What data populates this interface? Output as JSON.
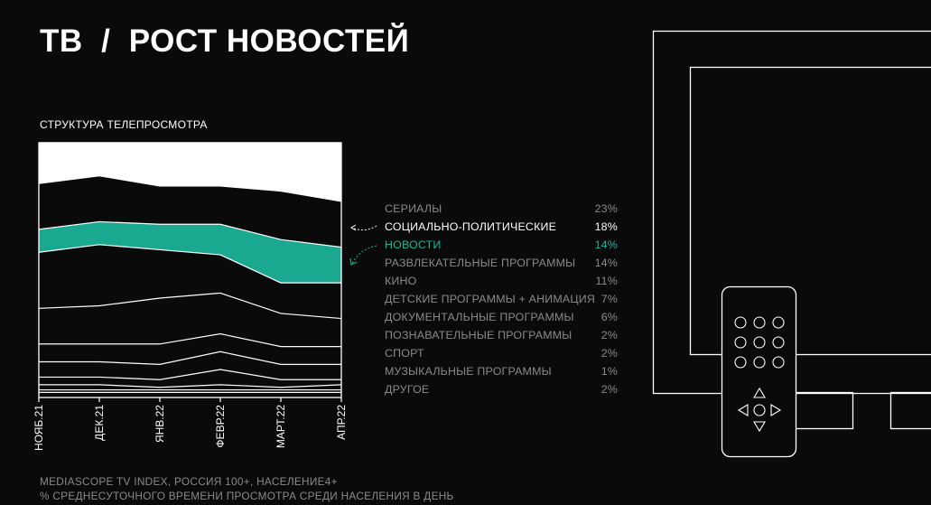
{
  "header": {
    "title": "ТВ  /  РОСТ НОВОСТЕЙ",
    "subtitle": "СТРУКТУРА ТЕЛЕПРОСМОТРА"
  },
  "colors": {
    "background": "#0a0a0a",
    "serials_band": "#ffffff",
    "news_band": "#1aa891",
    "accent_text": "#1fb59b",
    "muted_text": "#8a8a8a"
  },
  "chart_data": {
    "type": "area",
    "title": "СТРУКТУРА ТЕЛЕПРОСМОТРА",
    "stacked": true,
    "categories": [
      "НОЯБ.21",
      "ДЕК.21",
      "ЯНВ.22",
      "ФЕВР.22",
      "МАРТ.22",
      "АПР.22"
    ],
    "ylim": [
      0,
      100
    ],
    "series": [
      {
        "name": "ДРУГОЕ",
        "values": [
          2,
          2,
          2,
          2,
          2,
          2
        ]
      },
      {
        "name": "МУЗЫКАЛЬНЫЕ ПРОГРАММЫ",
        "values": [
          1,
          1,
          1,
          1,
          1,
          1
        ]
      },
      {
        "name": "СПОРТ",
        "values": [
          2,
          2,
          1,
          2,
          1,
          2
        ]
      },
      {
        "name": "ПОЗНАВАТЕЛЬНЫЕ ПРОГРАММЫ",
        "values": [
          3,
          3,
          3,
          6,
          3,
          2
        ]
      },
      {
        "name": "ДОКУМЕНТАЛЬНЫЕ ПРОГРАММЫ",
        "values": [
          6,
          6,
          6,
          7,
          6,
          6
        ]
      },
      {
        "name": "ДЕТСКИЕ ПРОГРАММЫ + АНИМАЦИЯ",
        "values": [
          7,
          7,
          8,
          7,
          7,
          7
        ]
      },
      {
        "name": "КИНО",
        "values": [
          14,
          15,
          18,
          16,
          13,
          11
        ]
      },
      {
        "name": "РАЗВЛЕКАТЕЛЬНЫЕ ПРОГРАММЫ",
        "values": [
          22,
          24,
          19,
          15,
          12,
          14
        ]
      },
      {
        "name": "НОВОСТИ",
        "values": [
          9,
          9,
          10,
          12,
          17,
          14
        ]
      },
      {
        "name": "СОЦИАЛЬНО-ПОЛИТИЧЕСКИЕ",
        "values": [
          18,
          18,
          15,
          15,
          19,
          18
        ]
      },
      {
        "name": "СЕРИАЛЫ",
        "values": [
          16,
          13,
          17,
          17,
          19,
          23
        ]
      }
    ]
  },
  "legend": [
    {
      "label": "СЕРИАЛЫ",
      "pct": "23%",
      "style": "muted"
    },
    {
      "label": "СОЦИАЛЬНО-ПОЛИТИЧЕСКИЕ",
      "pct": "18%",
      "style": "white"
    },
    {
      "label": "НОВОСТИ",
      "pct": "14%",
      "style": "green"
    },
    {
      "label": "РАЗВЛЕКАТЕЛЬНЫЕ ПРОГРАММЫ",
      "pct": "14%",
      "style": "muted"
    },
    {
      "label": "КИНО",
      "pct": "11%",
      "style": "muted"
    },
    {
      "label": "ДЕТСКИЕ ПРОГРАММЫ + АНИМАЦИЯ",
      "pct": "7%",
      "style": "muted"
    },
    {
      "label": "ДОКУМЕНТАЛЬНЫЕ ПРОГРАММЫ",
      "pct": "6%",
      "style": "muted"
    },
    {
      "label": "ПОЗНАВАТЕЛЬНЫЕ ПРОГРАММЫ",
      "pct": "2%",
      "style": "muted"
    },
    {
      "label": "СПОРТ",
      "pct": "2%",
      "style": "muted"
    },
    {
      "label": "МУЗЫКАЛЬНЫЕ ПРОГРАММЫ",
      "pct": "1%",
      "style": "muted"
    },
    {
      "label": "ДРУГОЕ",
      "pct": "2%",
      "style": "muted"
    }
  ],
  "footer": {
    "line1": "MEDIASCOPE TV INDEX, РОССИЯ 100+, НАСЕЛЕНИЕ4+",
    "line2": "% СРЕДНЕСУТОЧНОГО ВРЕМЕНИ ПРОСМОТРА СРЕДИ НАСЕЛЕНИЯ В ДЕНЬ"
  }
}
